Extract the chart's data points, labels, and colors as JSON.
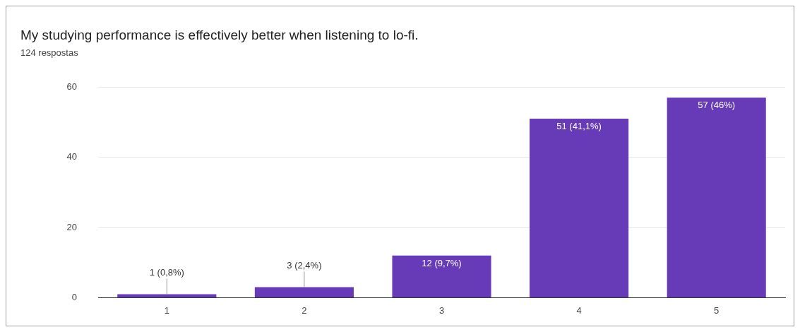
{
  "chart_data": {
    "type": "bar",
    "title": "My studying performance is effectively better when listening to lo-fi.",
    "subtitle": "124 respostas",
    "categories": [
      "1",
      "2",
      "3",
      "4",
      "5"
    ],
    "values": [
      1,
      3,
      12,
      51,
      57
    ],
    "value_labels": [
      "1 (0,8%)",
      "3 (2,4%)",
      "12 (9,7%)",
      "51 (41,1%)",
      "57 (46%)"
    ],
    "color": "#673ab7",
    "ylim": [
      0,
      60
    ],
    "yticks": [
      0,
      20,
      40,
      60
    ],
    "grid": "y",
    "legend": false
  }
}
